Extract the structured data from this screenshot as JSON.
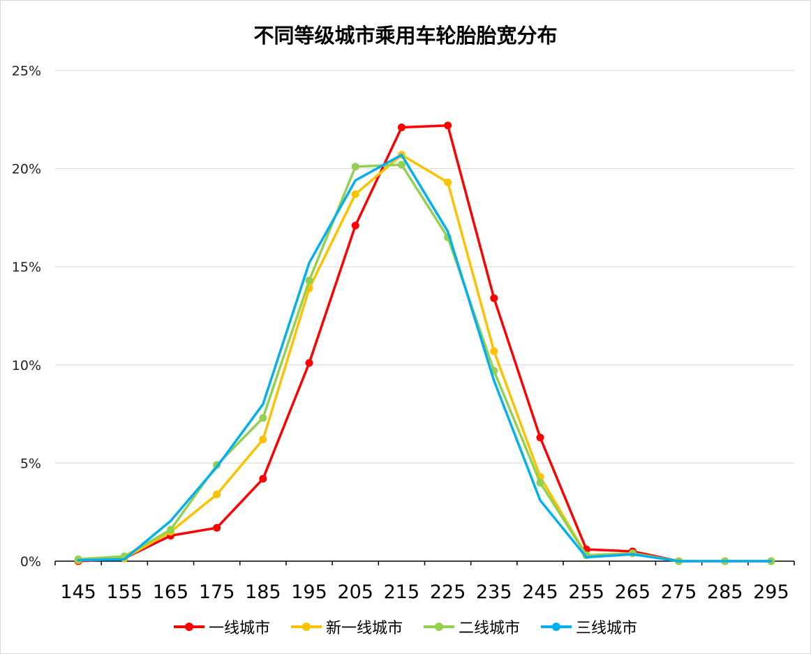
{
  "chart_data": {
    "type": "line",
    "title": "不同等级城市乘用车轮胎胎宽分布",
    "xlabel": "",
    "ylabel": "",
    "ylim": [
      0,
      25
    ],
    "yticks": [
      "0%",
      "5%",
      "10%",
      "15%",
      "20%",
      "25%"
    ],
    "categories": [
      "145",
      "155",
      "165",
      "175",
      "185",
      "195",
      "205",
      "215",
      "225",
      "235",
      "245",
      "255",
      "265",
      "275",
      "285",
      "295"
    ],
    "grid": "horizontal",
    "legend_position": "bottom",
    "series": [
      {
        "name": "一线城市",
        "color": "#ff0000",
        "markers": true,
        "values": [
          0.0,
          0.15,
          1.3,
          1.7,
          4.2,
          10.1,
          17.1,
          22.1,
          22.2,
          13.4,
          6.3,
          0.6,
          0.5,
          0.0,
          0.0,
          0.0
        ]
      },
      {
        "name": "新一线城市",
        "color": "#ffc000",
        "markers": true,
        "values": [
          0.05,
          0.15,
          1.5,
          3.4,
          6.2,
          13.9,
          18.7,
          20.7,
          19.3,
          10.7,
          4.3,
          0.3,
          0.4,
          0.0,
          0.0,
          0.0
        ]
      },
      {
        "name": "二线城市",
        "color": "#92d050",
        "markers": true,
        "values": [
          0.1,
          0.25,
          1.6,
          4.9,
          7.3,
          14.3,
          20.1,
          20.2,
          16.5,
          9.7,
          4.0,
          0.3,
          0.4,
          0.0,
          0.0,
          0.0
        ]
      },
      {
        "name": "三线城市",
        "color": "#00b0f0",
        "markers": false,
        "values": [
          0.05,
          0.1,
          2.05,
          4.8,
          8.0,
          15.2,
          19.4,
          20.7,
          16.8,
          9.2,
          3.1,
          0.2,
          0.35,
          0.0,
          0.0,
          0.0
        ]
      }
    ]
  }
}
